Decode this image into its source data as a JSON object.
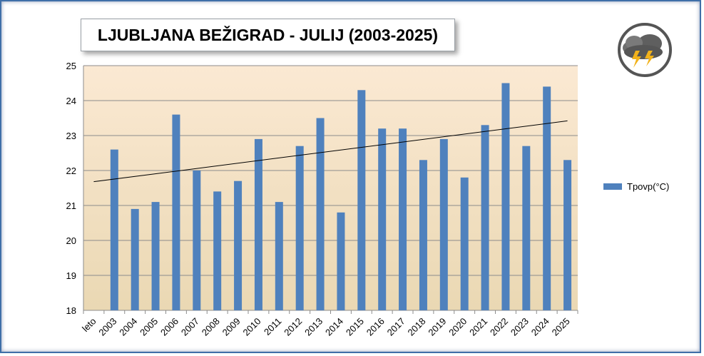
{
  "chart_data": {
    "type": "bar",
    "title": "LJUBLJANA BEŽIGRAD - JULIJ (2003-2025)",
    "categories": [
      "leto",
      "2003",
      "2004",
      "2005",
      "2006",
      "2007",
      "2008",
      "2009",
      "2010",
      "2011",
      "2012",
      "2013",
      "2014",
      "2015",
      "2016",
      "2017",
      "2018",
      "2019",
      "2020",
      "2021",
      "2022",
      "2023",
      "2024",
      "2025"
    ],
    "series": [
      {
        "name": "Tpovp(°C)",
        "values": [
          null,
          22.6,
          20.9,
          21.1,
          23.6,
          22.0,
          21.4,
          21.7,
          22.9,
          21.1,
          22.7,
          23.5,
          20.8,
          24.3,
          23.2,
          23.2,
          22.3,
          22.9,
          21.8,
          23.3,
          24.5,
          22.7,
          24.4,
          22.3
        ]
      }
    ],
    "trendline": {
      "type": "linear",
      "start": 21.68,
      "end": 23.42
    },
    "ylim": [
      18,
      25
    ],
    "yticks": [
      18,
      19,
      20,
      21,
      22,
      23,
      24,
      25
    ],
    "xlabel": "",
    "ylabel": "",
    "grid": true,
    "legend": "right",
    "colors": {
      "bar": "#4f81bd",
      "plot_top": "#fbe7cf",
      "plot_bottom": "#e9d7b2",
      "grid": "#8c8c8c"
    }
  },
  "logo": {
    "icon": "storm-cloud-lightning-icon"
  }
}
